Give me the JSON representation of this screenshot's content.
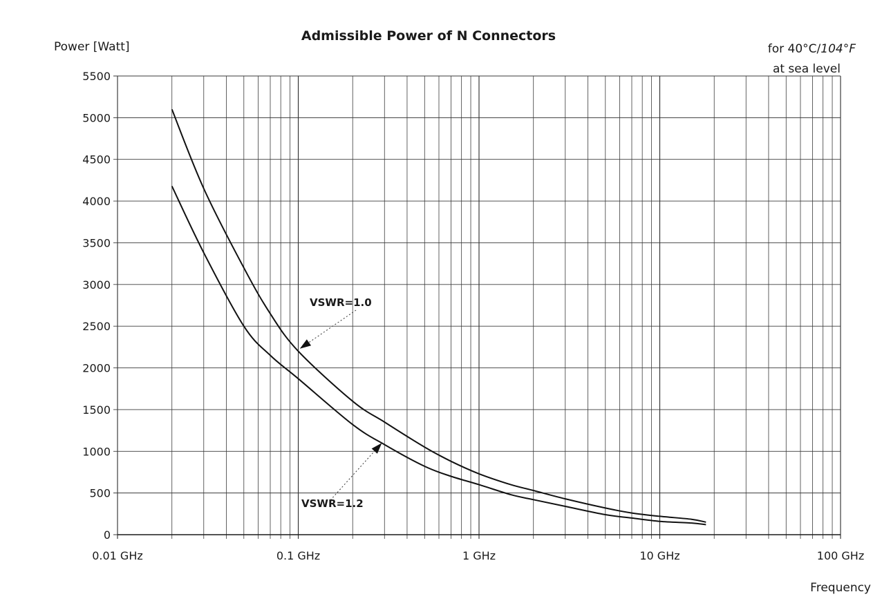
{
  "chart_data": {
    "type": "line",
    "title": "Admissible Power of N Connectors",
    "ylabel": "Power [Watt]",
    "xlabel": "Frequency",
    "note_line1_prefix": "for 40°C/",
    "note_line1_italic": "104°F",
    "note_line2": "at sea level",
    "x_scale": "log",
    "xlim": [
      0.01,
      100
    ],
    "ylim": [
      0,
      5500
    ],
    "x_ticks": [
      0.01,
      0.1,
      1,
      10,
      100
    ],
    "x_tick_labels": [
      "0.01 GHz",
      "0.1 GHz",
      "1 GHz",
      "10 GHz",
      "100 GHz"
    ],
    "y_ticks": [
      0,
      500,
      1000,
      1500,
      2000,
      2500,
      3000,
      3500,
      4000,
      4500,
      5000,
      5500
    ],
    "y_tick_labels": [
      "0",
      "500",
      "1000",
      "1500",
      "2000",
      "2500",
      "3000",
      "3500",
      "4000",
      "4500",
      "5000",
      "5500"
    ],
    "grid": true,
    "series": [
      {
        "name": "VSWR=1.0",
        "x": [
          0.02,
          0.03,
          0.05,
          0.07,
          0.1,
          0.2,
          0.3,
          0.5,
          0.7,
          1,
          1.5,
          2,
          3,
          5,
          7,
          10,
          15,
          18
        ],
        "y": [
          5100,
          4150,
          3200,
          2650,
          2200,
          1600,
          1350,
          1050,
          880,
          730,
          600,
          530,
          430,
          320,
          260,
          220,
          185,
          150
        ]
      },
      {
        "name": "VSWR=1.2",
        "x": [
          0.02,
          0.03,
          0.05,
          0.07,
          0.1,
          0.2,
          0.3,
          0.5,
          0.7,
          1,
          1.5,
          2,
          3,
          5,
          7,
          10,
          15,
          18
        ],
        "y": [
          4180,
          3380,
          2500,
          2150,
          1870,
          1320,
          1080,
          820,
          700,
          600,
          480,
          420,
          340,
          240,
          200,
          160,
          140,
          120
        ]
      }
    ]
  }
}
